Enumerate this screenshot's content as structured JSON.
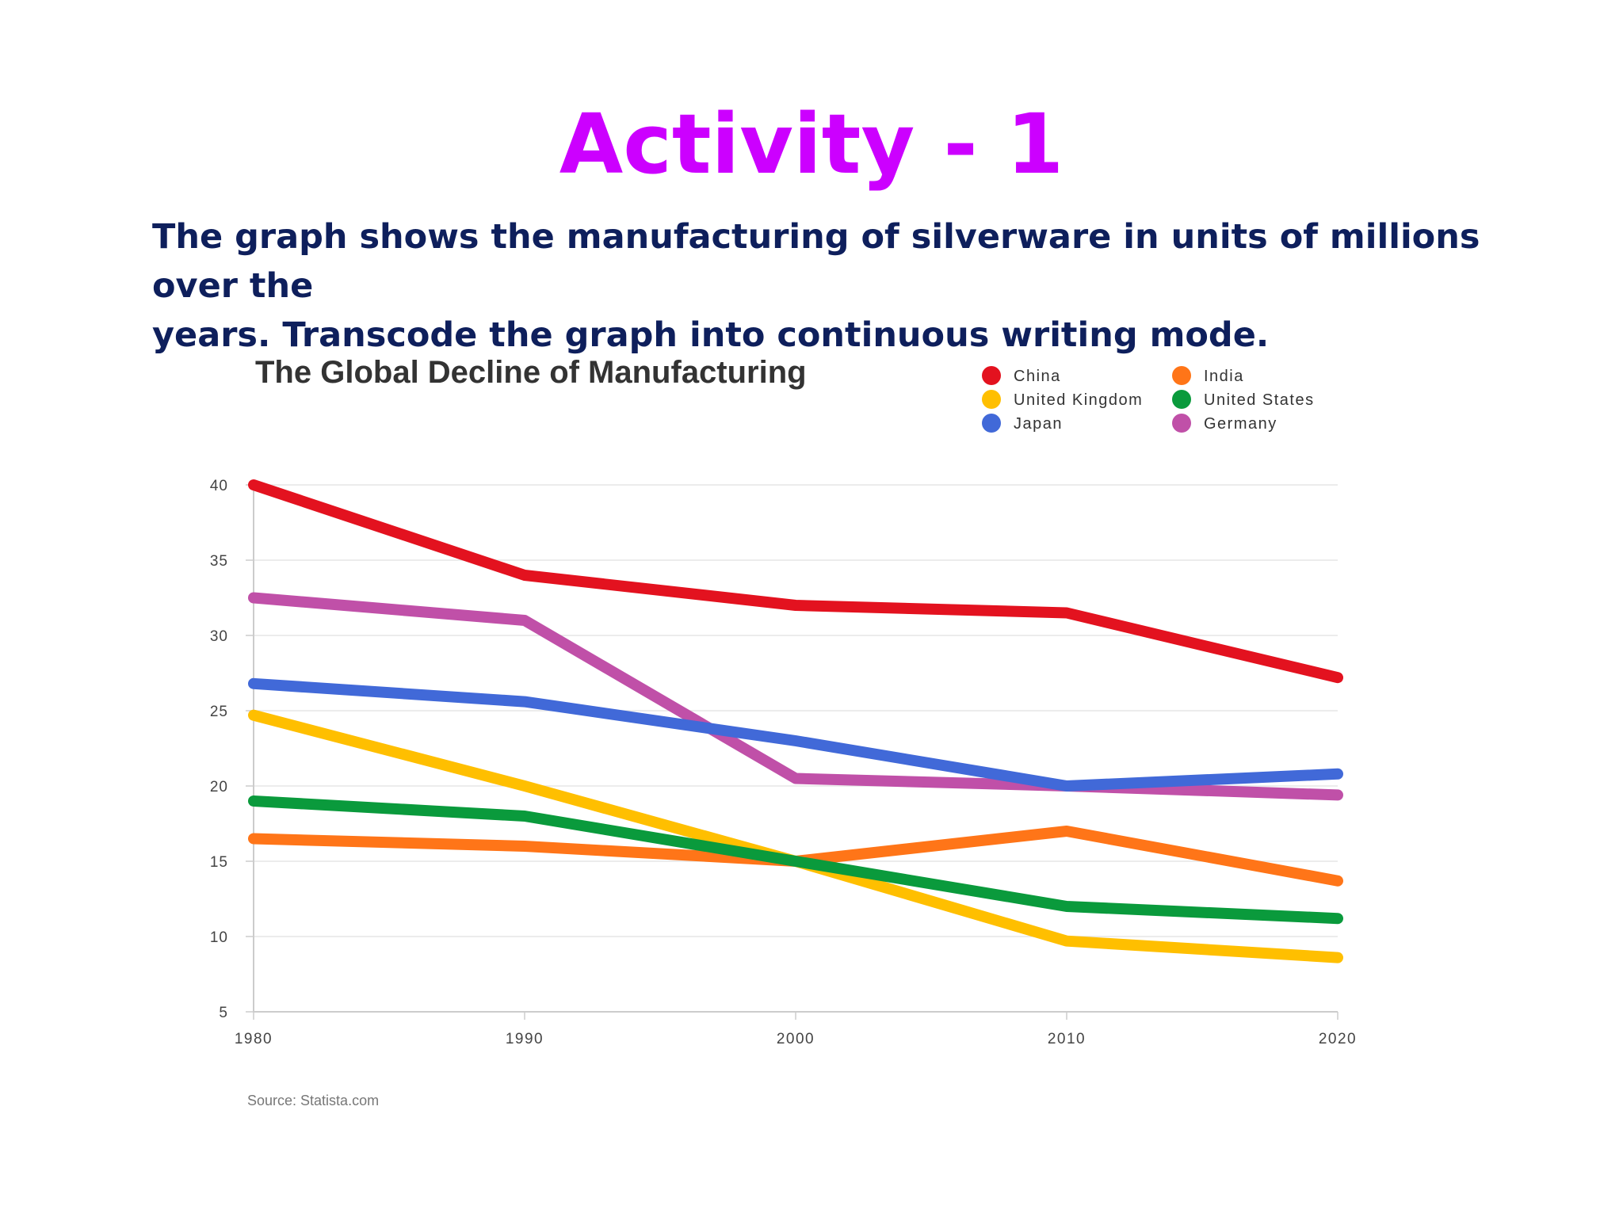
{
  "slide": {
    "title": "Activity - 1",
    "instruction_line1": "The graph shows the manufacturing of silverware in units of millions over the",
    "instruction_line2": "years.  Transcode the graph into continuous writing mode."
  },
  "colors": {
    "title": "#cc00ff",
    "instructions": "#0e1f5c"
  },
  "chart_data": {
    "type": "line",
    "title": "The Global Decline of Manufacturing",
    "source": "Source: Statista.com",
    "x": [
      1980,
      1990,
      2000,
      2010,
      2020
    ],
    "xlim": [
      1980,
      2020
    ],
    "ylim": [
      5,
      40
    ],
    "yticks": [
      5,
      10,
      15,
      20,
      25,
      30,
      35,
      40
    ],
    "grid": true,
    "legend_position": "top-right",
    "series": [
      {
        "name": "China",
        "color": "#e3121f",
        "values": [
          40,
          34,
          32,
          31.5,
          27.2
        ]
      },
      {
        "name": "India",
        "color": "#ff7518",
        "values": [
          16.5,
          16,
          15,
          17,
          13.7
        ]
      },
      {
        "name": "United Kingdom",
        "color": "#ffbf00",
        "values": [
          24.7,
          20,
          15,
          9.7,
          8.6
        ]
      },
      {
        "name": "United States",
        "color": "#0a9a3c",
        "values": [
          19,
          18,
          15,
          12,
          11.2
        ]
      },
      {
        "name": "Japan",
        "color": "#4169d8",
        "values": [
          26.8,
          25.6,
          23,
          20,
          20.8
        ]
      },
      {
        "name": "Germany",
        "color": "#c050a8",
        "values": [
          32.5,
          31,
          20.5,
          20,
          19.4
        ]
      }
    ]
  }
}
